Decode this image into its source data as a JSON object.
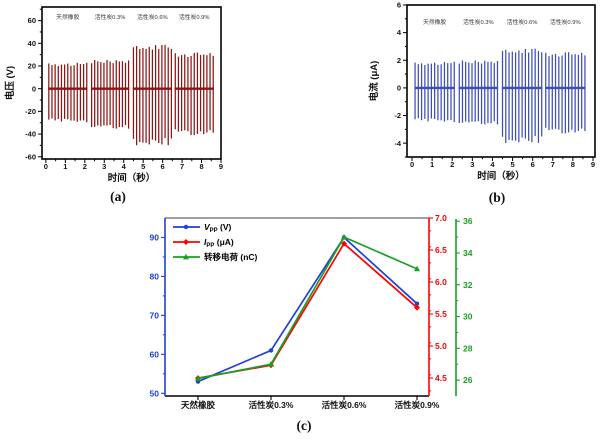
{
  "captions": {
    "a": "(a)",
    "b": "(b)",
    "c": "(c)"
  },
  "chart_data": [
    {
      "id": "a",
      "type": "line",
      "panel": "(a)",
      "description": "triboelectric output voltage pulse bursts vs time",
      "xlabel": "时间（秒）",
      "ylabel": "电压 (V)",
      "xlim": [
        -0.2,
        9.0
      ],
      "ylim": [
        -62,
        72
      ],
      "xticks": [
        "0",
        "1",
        "2",
        "3",
        "4",
        "5",
        "6",
        "7",
        "8",
        "9"
      ],
      "yticks": [
        "-60",
        "-40",
        "-20",
        "0",
        "20",
        "40",
        "60"
      ],
      "line_color": "#8B1414",
      "grid": false,
      "groups": [
        {
          "label": "天然橡胶",
          "t_start": 0.15,
          "t_end": 2.1,
          "pulses": 13,
          "peak": 23.0,
          "trough": -30
        },
        {
          "label": "活性炭0.3%",
          "t_start": 2.35,
          "t_end": 4.25,
          "pulses": 13,
          "peak": 25.5,
          "trough": -36
        },
        {
          "label": "活性炭0.6%",
          "t_start": 4.5,
          "t_end": 6.45,
          "pulses": 13,
          "peak": 39.5,
          "trough": -50
        },
        {
          "label": "活性炭0.9%",
          "t_start": 6.65,
          "t_end": 8.6,
          "pulses": 13,
          "peak": 32.0,
          "trough": -41
        }
      ]
    },
    {
      "id": "b",
      "type": "line",
      "panel": "(b)",
      "description": "triboelectric output current pulse bursts vs time",
      "xlabel": "时间（秒）",
      "ylabel": "电流 (μA)",
      "xlim": [
        -0.25,
        9.1
      ],
      "ylim": [
        -5,
        6
      ],
      "xticks": [
        "0",
        "1",
        "2",
        "3",
        "4",
        "5",
        "6",
        "7",
        "8",
        "9"
      ],
      "yticks": [
        "-4",
        "-2",
        "0",
        "2",
        "4",
        "6"
      ],
      "line_color": "#3D4EB8",
      "grid": false,
      "groups": [
        {
          "label": "天然橡胶",
          "t_start": 0.15,
          "t_end": 2.1,
          "pulses": 13,
          "peak": 1.9,
          "trough": -2.5
        },
        {
          "label": "活性炭0.3%",
          "t_start": 2.35,
          "t_end": 4.25,
          "pulses": 13,
          "peak": 2.0,
          "trough": -2.7
        },
        {
          "label": "活性炭0.6%",
          "t_start": 4.5,
          "t_end": 6.45,
          "pulses": 13,
          "peak": 2.9,
          "trough": -4.0
        },
        {
          "label": "活性炭0.9%",
          "t_start": 6.65,
          "t_end": 8.6,
          "pulses": 13,
          "peak": 2.6,
          "trough": -3.3
        }
      ]
    },
    {
      "id": "c",
      "type": "line",
      "panel": "(c)",
      "description": "peak-to-peak voltage, current and transferred charge vs filler content",
      "categories": [
        "天然橡胶",
        "活性炭0.3%",
        "活性炭0.6%",
        "活性炭0.9%"
      ],
      "series": [
        {
          "key": "vpp",
          "legend": {
            "main": "V",
            "sub": "PP",
            "rest": " (V)",
            "italic": true
          },
          "color": "#2040D8",
          "marker": "circle",
          "axis": "left",
          "values": [
            53,
            61,
            90,
            73
          ]
        },
        {
          "key": "ipp",
          "legend": {
            "main": "I",
            "sub": "PP",
            "rest": " (μA)",
            "italic": true
          },
          "color": "#FF0000",
          "marker": "diamond",
          "axis": "red",
          "values": [
            4.5,
            4.7,
            6.6,
            5.6
          ]
        },
        {
          "key": "charge",
          "legend": {
            "main": "转移电荷",
            "sub": "",
            "rest": " (nC)",
            "italic": false
          },
          "color": "#19A023",
          "marker": "triangle",
          "axis": "green",
          "values": [
            26.1,
            27,
            35,
            33
          ]
        }
      ],
      "axes": {
        "left": {
          "lim": [
            49.3,
            95.0
          ],
          "ticks": [
            "50",
            "60",
            "70",
            "80",
            "90"
          ],
          "color": "#2040D8"
        },
        "red": {
          "lim": [
            4.22,
            7.0
          ],
          "ticks": [
            "4.5",
            "5.0",
            "5.5",
            "6.0",
            "6.5",
            "7.0"
          ],
          "color": "#FF0000"
        },
        "green": {
          "lim": [
            25.0,
            36.2
          ],
          "ticks": [
            "26",
            "28",
            "30",
            "32",
            "34",
            "36"
          ],
          "color": "#19A023"
        }
      },
      "top_border_color": "#808080",
      "legend_position": "top-left"
    }
  ]
}
